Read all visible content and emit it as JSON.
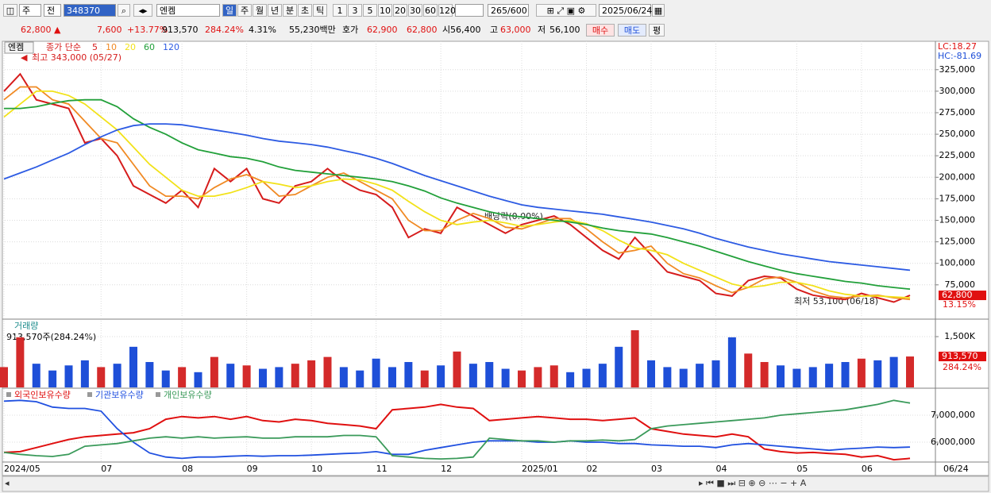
{
  "toolbar": {
    "market": "주",
    "scope": "전",
    "code": "348370",
    "name": "엔켐",
    "periods": [
      "일",
      "주",
      "월",
      "년",
      "분",
      "초",
      "틱"
    ],
    "intervals": [
      "1",
      "3",
      "5",
      "10",
      "20",
      "30",
      "60",
      "120"
    ],
    "count": "265/600",
    "date": "2025/06/24"
  },
  "quote": {
    "price": "62,800 ▲",
    "change": "7,600",
    "change_rate": "+13.77%",
    "volume": "913,570",
    "volume_rate": "284.24%",
    "turnover": "4.31%",
    "amount": "55,230백만",
    "bid_ask_label": "호가",
    "ask": "62,900",
    "bid": "62,800",
    "open_label": "시",
    "open": "56,400",
    "high_label": "고",
    "high": "63,000",
    "low_label": "저",
    "low": "56,100",
    "buy": "매수",
    "sell": "매도",
    "avg": "평"
  },
  "chart_data": [
    {
      "type": "line",
      "stock": "엔켐",
      "legend_title": "종가 단순",
      "categories": [
        "2024/05",
        null,
        null,
        null,
        null,
        null,
        "07",
        null,
        null,
        null,
        null,
        "08",
        null,
        null,
        null,
        "09",
        null,
        null,
        null,
        "10",
        null,
        null,
        null,
        "11",
        null,
        null,
        null,
        "12",
        null,
        null,
        null,
        null,
        "2025/01",
        null,
        null,
        null,
        "02",
        null,
        null,
        null,
        "03",
        null,
        null,
        null,
        "04",
        null,
        null,
        null,
        null,
        "05",
        null,
        null,
        null,
        "06",
        null,
        null,
        null
      ],
      "last_date": "06/24",
      "series": [
        {
          "name": "5",
          "color": "#d61c1c",
          "values": [
            300000,
            320000,
            290000,
            285000,
            280000,
            240000,
            245000,
            225000,
            190000,
            180000,
            170000,
            185000,
            165000,
            210000,
            195000,
            210000,
            175000,
            170000,
            190000,
            195000,
            210000,
            195000,
            185000,
            180000,
            165000,
            130000,
            140000,
            135000,
            165000,
            155000,
            145000,
            135000,
            145000,
            150000,
            155000,
            145000,
            130000,
            115000,
            105000,
            130000,
            110000,
            90000,
            85000,
            80000,
            65000,
            62000,
            80000,
            85000,
            83000,
            70000,
            63000,
            60000,
            58000,
            65000,
            60000,
            55000,
            62800
          ]
        },
        {
          "name": "10",
          "color": "#f08a24",
          "values": [
            290000,
            305000,
            305000,
            290000,
            285000,
            265000,
            245000,
            240000,
            215000,
            190000,
            178000,
            178000,
            175000,
            188000,
            198000,
            203000,
            195000,
            178000,
            180000,
            190000,
            200000,
            205000,
            195000,
            185000,
            175000,
            150000,
            138000,
            138000,
            150000,
            158000,
            152000,
            142000,
            140000,
            146000,
            152000,
            152000,
            140000,
            125000,
            112000,
            115000,
            120000,
            100000,
            88000,
            83000,
            74000,
            66000,
            72000,
            82000,
            84000,
            78000,
            68000,
            62000,
            60000,
            62000,
            63000,
            60000,
            58000
          ]
        },
        {
          "name": "20",
          "color": "#f2e21a",
          "values": [
            270000,
            285000,
            300000,
            300000,
            295000,
            285000,
            270000,
            255000,
            235000,
            215000,
            200000,
            185000,
            178000,
            178000,
            182000,
            188000,
            195000,
            192000,
            188000,
            190000,
            195000,
            198000,
            197000,
            192000,
            185000,
            172000,
            160000,
            150000,
            145000,
            148000,
            150000,
            147000,
            143000,
            145000,
            148000,
            150000,
            146000,
            138000,
            127000,
            118000,
            115000,
            110000,
            100000,
            92000,
            84000,
            76000,
            72000,
            74000,
            78000,
            78000,
            74000,
            68000,
            64000,
            62000,
            62000,
            61000,
            60000
          ]
        },
        {
          "name": "60",
          "color": "#22a03a",
          "values": [
            280000,
            280000,
            282000,
            286000,
            289000,
            290000,
            290000,
            282000,
            268000,
            258000,
            250000,
            240000,
            232000,
            228000,
            224000,
            222000,
            218000,
            212000,
            208000,
            206000,
            204000,
            202000,
            200000,
            198000,
            195000,
            190000,
            184000,
            176000,
            170000,
            165000,
            160000,
            156000,
            154000,
            152000,
            150000,
            148000,
            145000,
            141000,
            138000,
            136000,
            134000,
            130000,
            125000,
            120000,
            114000,
            108000,
            102000,
            97000,
            92000,
            88000,
            85000,
            82000,
            79000,
            77000,
            74000,
            72000,
            70000
          ]
        },
        {
          "name": "120",
          "color": "#2d5be3",
          "values": [
            198000,
            205000,
            212000,
            220000,
            228000,
            238000,
            247000,
            255000,
            260000,
            262000,
            262000,
            261000,
            258000,
            255000,
            252000,
            249000,
            245000,
            242000,
            240000,
            238000,
            235000,
            231000,
            227000,
            222000,
            216000,
            209000,
            202000,
            196000,
            190000,
            184000,
            178000,
            173000,
            168000,
            165000,
            163000,
            161000,
            159000,
            157000,
            154000,
            151000,
            148000,
            144000,
            140000,
            135000,
            129000,
            124000,
            119000,
            115000,
            111000,
            108000,
            105000,
            102000,
            100000,
            98000,
            96000,
            94000,
            92000
          ]
        }
      ],
      "ylim": [
        37000,
        358000
      ],
      "yticks": [
        {
          "value": 75000,
          "label": "75,000"
        },
        {
          "value": 100000,
          "label": "100,000"
        },
        {
          "value": 125000,
          "label": "125,000"
        },
        {
          "value": 150000,
          "label": "150,000"
        },
        {
          "value": 175000,
          "label": "175,000"
        },
        {
          "value": 200000,
          "label": "200,000"
        },
        {
          "value": 225000,
          "label": "225,000"
        },
        {
          "value": 250000,
          "label": "250,000"
        },
        {
          "value": 275000,
          "label": "275,000"
        },
        {
          "value": 300000,
          "label": "300,000"
        },
        {
          "value": 325000,
          "label": "325,000"
        }
      ],
      "grid": true,
      "high_note": "최고 343,000 (05/27)",
      "low_note": "최저 53,100 (06/18)",
      "dividend_note": "배당락(0.00%)",
      "lc": "LC:18.27",
      "hc": "HC:-81.69",
      "last_price": {
        "value": 62800,
        "label": "62,800"
      },
      "last_rate": "13.15%"
    },
    {
      "type": "bar",
      "title": "거래량",
      "subtitle": "913,570주(284.24%)",
      "values": [
        600000,
        1480000,
        700000,
        500000,
        650000,
        800000,
        600000,
        700000,
        1200000,
        750000,
        500000,
        600000,
        450000,
        900000,
        700000,
        650000,
        550000,
        600000,
        700000,
        800000,
        900000,
        600000,
        500000,
        850000,
        600000,
        750000,
        500000,
        650000,
        1060000,
        700000,
        750000,
        550000,
        500000,
        600000,
        650000,
        450000,
        550000,
        700000,
        1200000,
        1690000,
        800000,
        600000,
        550000,
        700000,
        800000,
        1480000,
        1000000,
        750000,
        650000,
        550000,
        600000,
        700000,
        750000,
        850000,
        800000,
        900000,
        913570
      ],
      "colors": [
        "#d42a2a",
        "#d42a2a",
        "#1e4fd8",
        "#1e4fd8",
        "#1e4fd8",
        "#1e4fd8",
        "#d42a2a",
        "#1e4fd8",
        "#1e4fd8",
        "#1e4fd8",
        "#1e4fd8",
        "#d42a2a",
        "#1e4fd8",
        "#d42a2a",
        "#1e4fd8",
        "#d42a2a",
        "#1e4fd8",
        "#1e4fd8",
        "#d42a2a",
        "#d42a2a",
        "#d42a2a",
        "#1e4fd8",
        "#1e4fd8",
        "#1e4fd8",
        "#1e4fd8",
        "#1e4fd8",
        "#d42a2a",
        "#1e4fd8",
        "#d42a2a",
        "#1e4fd8",
        "#1e4fd8",
        "#1e4fd8",
        "#d42a2a",
        "#d42a2a",
        "#d42a2a",
        "#1e4fd8",
        "#1e4fd8",
        "#1e4fd8",
        "#1e4fd8",
        "#d42a2a",
        "#1e4fd8",
        "#1e4fd8",
        "#1e4fd8",
        "#1e4fd8",
        "#1e4fd8",
        "#1e4fd8",
        "#d42a2a",
        "#d42a2a",
        "#1e4fd8",
        "#1e4fd8",
        "#1e4fd8",
        "#1e4fd8",
        "#1e4fd8",
        "#d42a2a",
        "#1e4fd8",
        "#1e4fd8",
        "#d42a2a"
      ],
      "ylim": [
        0,
        1970000
      ],
      "yticks": [
        {
          "value": 1500000,
          "label": "1,500K"
        }
      ],
      "grid": true,
      "last_value": {
        "value": 913570,
        "label": "913,570"
      },
      "last_rate": "284.24%"
    },
    {
      "type": "line",
      "series": [
        {
          "name": "외국인보유수량",
          "color": "#e01010",
          "values": [
            5620000,
            5650000,
            5800000,
            5950000,
            6100000,
            6200000,
            6250000,
            6300000,
            6350000,
            6500000,
            6850000,
            6950000,
            6900000,
            6950000,
            6850000,
            6950000,
            6800000,
            6750000,
            6850000,
            6800000,
            6700000,
            6650000,
            6600000,
            6500000,
            7200000,
            7250000,
            7300000,
            7400000,
            7300000,
            7250000,
            6800000,
            6850000,
            6900000,
            6950000,
            6900000,
            6850000,
            6850000,
            6800000,
            6850000,
            6900000,
            6500000,
            6400000,
            6300000,
            6250000,
            6200000,
            6300000,
            6200000,
            5750000,
            5650000,
            5600000,
            5620000,
            5580000,
            5550000,
            5450000,
            5500000,
            5350000,
            5400000
          ]
        },
        {
          "name": "기관보유수량",
          "color": "#2050e0",
          "values": [
            7520000,
            7550000,
            7500000,
            7300000,
            7250000,
            7250000,
            7150000,
            6500000,
            6000000,
            5600000,
            5450000,
            5400000,
            5450000,
            5450000,
            5480000,
            5500000,
            5480000,
            5500000,
            5500000,
            5520000,
            5550000,
            5580000,
            5600000,
            5650000,
            5550000,
            5550000,
            5700000,
            5800000,
            5900000,
            6000000,
            6050000,
            6050000,
            6050000,
            6000000,
            6000000,
            6050000,
            6000000,
            6000000,
            5950000,
            5950000,
            5900000,
            5880000,
            5850000,
            5850000,
            5800000,
            5900000,
            5950000,
            5900000,
            5850000,
            5800000,
            5750000,
            5700000,
            5750000,
            5780000,
            5820000,
            5800000,
            5820000
          ]
        },
        {
          "name": "개인보유수량",
          "color": "#3a9a5a",
          "values": [
            5620000,
            5550000,
            5500000,
            5470000,
            5550000,
            5850000,
            5900000,
            5950000,
            6050000,
            6150000,
            6200000,
            6150000,
            6200000,
            6150000,
            6180000,
            6200000,
            6150000,
            6150000,
            6200000,
            6200000,
            6200000,
            6250000,
            6250000,
            6200000,
            5500000,
            5450000,
            5400000,
            5380000,
            5400000,
            5450000,
            6150000,
            6100000,
            6050000,
            6050000,
            6000000,
            6050000,
            6050000,
            6080000,
            6050000,
            6100000,
            6500000,
            6600000,
            6650000,
            6700000,
            6750000,
            6800000,
            6850000,
            6900000,
            7000000,
            7050000,
            7100000,
            7150000,
            7200000,
            7300000,
            7400000,
            7550000,
            7450000
          ]
        }
      ],
      "ylim": [
        5265000,
        7970000
      ],
      "yticks": [
        {
          "value": 6000000,
          "label": "6,000,000"
        },
        {
          "value": 7000000,
          "label": "7,000,000"
        }
      ],
      "grid": true
    }
  ]
}
